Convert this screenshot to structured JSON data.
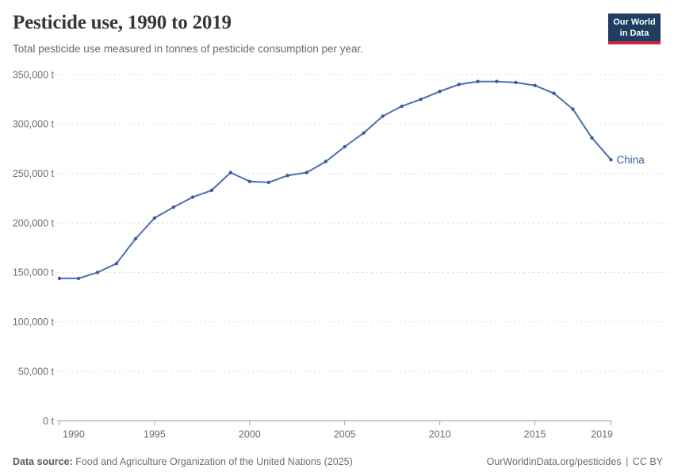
{
  "header": {
    "title": "Pesticide use, 1990 to 2019",
    "subtitle": "Total pesticide use measured in tonnes of pesticide consumption per year.",
    "logo": {
      "line1": "Our World",
      "line2": "in Data"
    }
  },
  "chart_data": {
    "type": "line",
    "title": "Pesticide use, 1990 to 2019",
    "xlabel": "",
    "ylabel": "tonnes of pesticide consumption per year",
    "unit": "t",
    "x": [
      1990,
      1991,
      1992,
      1993,
      1994,
      1995,
      1996,
      1997,
      1998,
      1999,
      2000,
      2001,
      2002,
      2003,
      2004,
      2005,
      2006,
      2007,
      2008,
      2009,
      2010,
      2011,
      2012,
      2013,
      2014,
      2015,
      2016,
      2017,
      2018,
      2019
    ],
    "series": [
      {
        "name": "China",
        "color": "#4c6fad",
        "marker_color": "#3d5e9d",
        "values": [
          144000,
          144000,
          150000,
          159000,
          184000,
          205000,
          216000,
          226000,
          233000,
          251000,
          242000,
          241000,
          248000,
          251000,
          262000,
          277000,
          291000,
          308000,
          318000,
          325000,
          333000,
          340000,
          343000,
          343000,
          342000,
          339000,
          331000,
          315000,
          286000,
          264000
        ]
      }
    ],
    "ylim": [
      0,
      350000
    ],
    "ytick_step": 50000,
    "xticks": [
      1990,
      1995,
      2000,
      2005,
      2010,
      2015,
      2019
    ],
    "grid": "horizontal-dashed",
    "legend": "end-of-line-label"
  },
  "footer": {
    "source_label": "Data source:",
    "source_text": "Food and Agriculture Organization of the United Nations (2025)",
    "url_text": "OurWorldinData.org/pesticides",
    "separator": "|",
    "license_text": "CC BY"
  },
  "colors": {
    "series": "#4c6fad",
    "marker": "#3d5e9d",
    "grid": "#dcdcdc",
    "axis": "#9e9e9e",
    "tick_label": "#6e6e6e",
    "title": "#373737",
    "subtitle": "#696969",
    "logo_bg": "#1d3d63",
    "logo_red": "#cb2740"
  }
}
